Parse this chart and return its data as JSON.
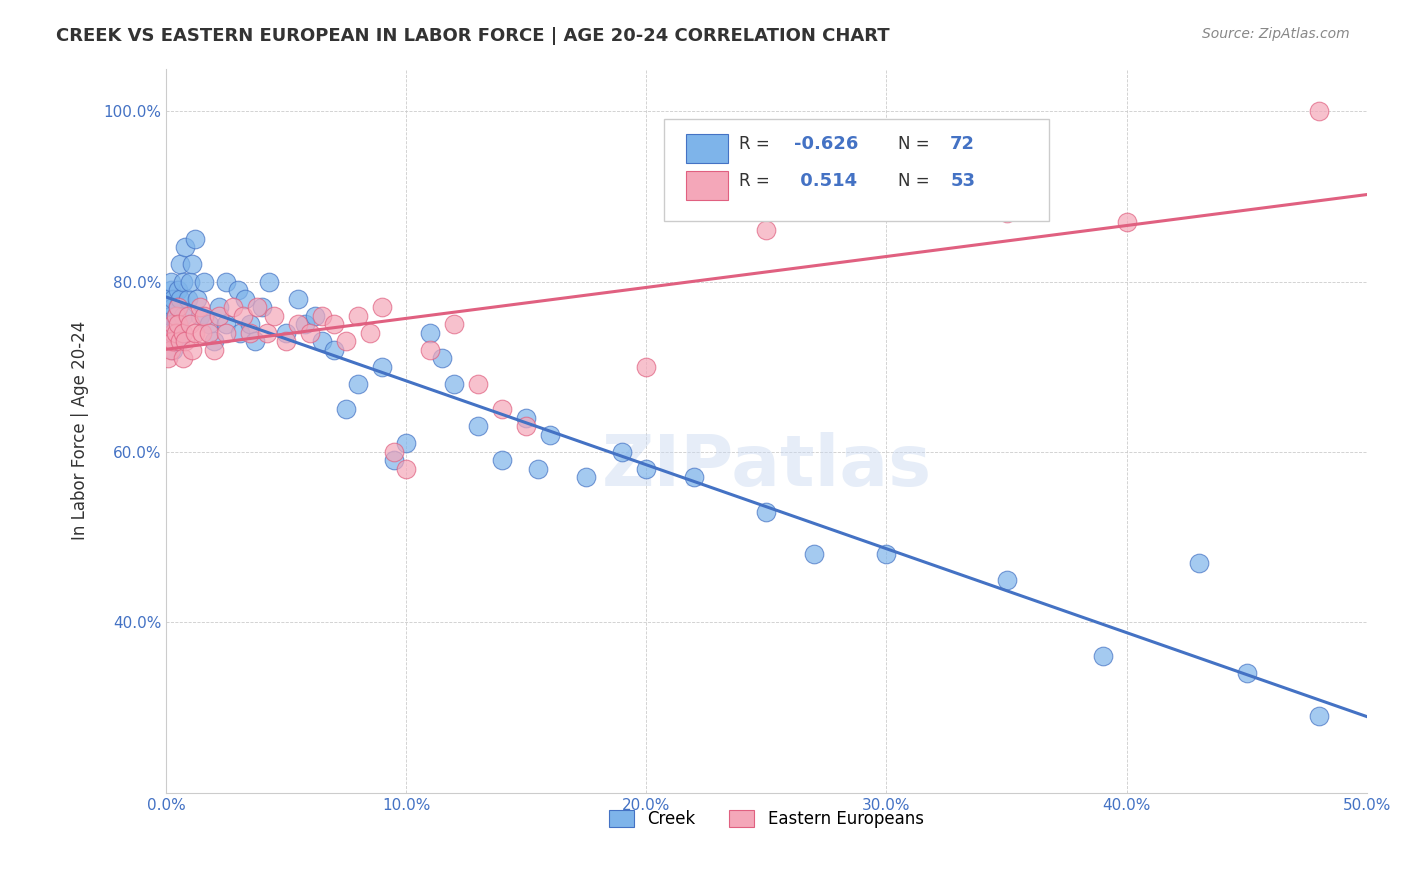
{
  "title": "CREEK VS EASTERN EUROPEAN IN LABOR FORCE | AGE 20-24 CORRELATION CHART",
  "source": "Source: ZipAtlas.com",
  "ylabel": "In Labor Force | Age 20-24",
  "xlim": [
    0.0,
    0.5
  ],
  "ylim": [
    0.2,
    1.05
  ],
  "x_ticks": [
    0.0,
    0.1,
    0.2,
    0.3,
    0.4,
    0.5
  ],
  "x_tick_labels": [
    "0.0%",
    "10.0%",
    "20.0%",
    "30.0%",
    "40.0%",
    "50.0%"
  ],
  "y_ticks": [
    0.4,
    0.6,
    0.8,
    1.0
  ],
  "y_tick_labels": [
    "40.0%",
    "60.0%",
    "80.0%",
    "100.0%"
  ],
  "creek_R": -0.626,
  "creek_N": 72,
  "eastern_R": 0.514,
  "eastern_N": 53,
  "creek_color": "#7EB4EA",
  "eastern_color": "#F4A7B9",
  "creek_line_color": "#4472C4",
  "eastern_line_color": "#E06080",
  "watermark": "ZIPatlas",
  "creek_x": [
    0.001,
    0.001,
    0.002,
    0.002,
    0.002,
    0.003,
    0.003,
    0.003,
    0.003,
    0.003,
    0.004,
    0.004,
    0.004,
    0.005,
    0.005,
    0.005,
    0.005,
    0.006,
    0.006,
    0.007,
    0.007,
    0.008,
    0.009,
    0.01,
    0.011,
    0.012,
    0.013,
    0.014,
    0.016,
    0.018,
    0.02,
    0.022,
    0.025,
    0.025,
    0.03,
    0.031,
    0.033,
    0.035,
    0.037,
    0.04,
    0.043,
    0.05,
    0.055,
    0.058,
    0.062,
    0.065,
    0.07,
    0.075,
    0.08,
    0.09,
    0.095,
    0.1,
    0.11,
    0.115,
    0.12,
    0.13,
    0.14,
    0.15,
    0.155,
    0.16,
    0.175,
    0.19,
    0.2,
    0.22,
    0.25,
    0.27,
    0.3,
    0.35,
    0.39,
    0.43,
    0.45,
    0.48
  ],
  "creek_y": [
    0.75,
    0.78,
    0.79,
    0.8,
    0.76,
    0.77,
    0.74,
    0.73,
    0.78,
    0.72,
    0.76,
    0.75,
    0.73,
    0.79,
    0.77,
    0.75,
    0.73,
    0.82,
    0.78,
    0.8,
    0.76,
    0.84,
    0.78,
    0.8,
    0.82,
    0.85,
    0.78,
    0.76,
    0.8,
    0.75,
    0.73,
    0.77,
    0.8,
    0.75,
    0.79,
    0.74,
    0.78,
    0.75,
    0.73,
    0.77,
    0.8,
    0.74,
    0.78,
    0.75,
    0.76,
    0.73,
    0.72,
    0.65,
    0.68,
    0.7,
    0.59,
    0.61,
    0.74,
    0.71,
    0.68,
    0.63,
    0.59,
    0.64,
    0.58,
    0.62,
    0.57,
    0.6,
    0.58,
    0.57,
    0.53,
    0.48,
    0.48,
    0.45,
    0.36,
    0.47,
    0.34,
    0.29
  ],
  "eastern_x": [
    0.001,
    0.002,
    0.002,
    0.003,
    0.003,
    0.003,
    0.004,
    0.004,
    0.005,
    0.005,
    0.006,
    0.007,
    0.007,
    0.008,
    0.009,
    0.01,
    0.011,
    0.012,
    0.014,
    0.015,
    0.016,
    0.018,
    0.02,
    0.022,
    0.025,
    0.028,
    0.032,
    0.035,
    0.038,
    0.042,
    0.045,
    0.05,
    0.055,
    0.06,
    0.065,
    0.07,
    0.075,
    0.08,
    0.085,
    0.09,
    0.095,
    0.1,
    0.11,
    0.12,
    0.13,
    0.14,
    0.15,
    0.2,
    0.25,
    0.3,
    0.35,
    0.4,
    0.48
  ],
  "eastern_y": [
    0.71,
    0.73,
    0.72,
    0.74,
    0.75,
    0.73,
    0.76,
    0.74,
    0.77,
    0.75,
    0.73,
    0.71,
    0.74,
    0.73,
    0.76,
    0.75,
    0.72,
    0.74,
    0.77,
    0.74,
    0.76,
    0.74,
    0.72,
    0.76,
    0.74,
    0.77,
    0.76,
    0.74,
    0.77,
    0.74,
    0.76,
    0.73,
    0.75,
    0.74,
    0.76,
    0.75,
    0.73,
    0.76,
    0.74,
    0.77,
    0.6,
    0.58,
    0.72,
    0.75,
    0.68,
    0.65,
    0.63,
    0.7,
    0.86,
    0.9,
    0.88,
    0.87,
    1.0
  ]
}
